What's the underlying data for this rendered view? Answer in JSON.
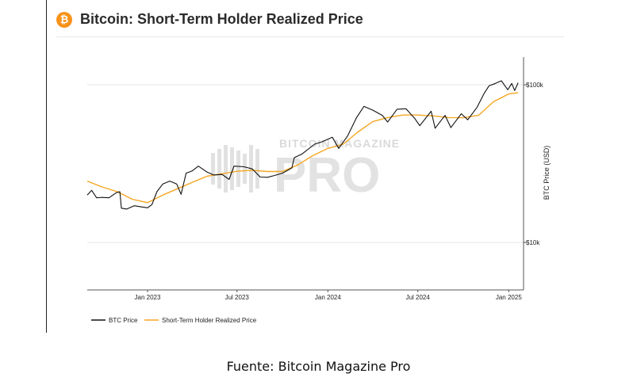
{
  "header": {
    "logo_glyph": "₿",
    "logo_color": "#f7931a",
    "title": "Bitcoin: Short-Term Holder Realized Price"
  },
  "watermark": {
    "line1": "BITCOIN MAGAZINE",
    "line2": "PRO"
  },
  "caption": "Fuente: Bitcoin Magazine Pro",
  "chart_data": {
    "type": "line",
    "x_axis": {
      "ticks": [
        "Jan 2023",
        "Jul 2023",
        "Jan 2024",
        "Jul 2024",
        "Jan 2025"
      ],
      "range": [
        "2022-09-01",
        "2025-01-31"
      ]
    },
    "y_axis": {
      "label": "BTC Price (USD)",
      "scale": "log",
      "ticks": [
        {
          "value": 100000,
          "label": "$100k"
        },
        {
          "value": 10000,
          "label": "$10k"
        }
      ],
      "range": [
        5000,
        150000
      ],
      "position": "right"
    },
    "grid": "horizontal",
    "legend": "bottom-left",
    "series": [
      {
        "name": "BTC Price",
        "color": "#111111",
        "points": [
          [
            "2022-09-01",
            20000
          ],
          [
            "2022-09-10",
            21400
          ],
          [
            "2022-09-20",
            19200
          ],
          [
            "2022-10-01",
            19300
          ],
          [
            "2022-10-15",
            19200
          ],
          [
            "2022-10-30",
            20700
          ],
          [
            "2022-11-06",
            21000
          ],
          [
            "2022-11-09",
            16500
          ],
          [
            "2022-11-20",
            16300
          ],
          [
            "2022-12-05",
            17100
          ],
          [
            "2022-12-20",
            16800
          ],
          [
            "2023-01-01",
            16600
          ],
          [
            "2023-01-10",
            17400
          ],
          [
            "2023-01-20",
            21000
          ],
          [
            "2023-02-01",
            23500
          ],
          [
            "2023-02-15",
            24500
          ],
          [
            "2023-03-01",
            23500
          ],
          [
            "2023-03-10",
            20200
          ],
          [
            "2023-03-20",
            27500
          ],
          [
            "2023-04-01",
            28400
          ],
          [
            "2023-04-14",
            30500
          ],
          [
            "2023-05-01",
            28000
          ],
          [
            "2023-05-15",
            26800
          ],
          [
            "2023-06-01",
            27000
          ],
          [
            "2023-06-15",
            25100
          ],
          [
            "2023-06-25",
            30500
          ],
          [
            "2023-07-15",
            30200
          ],
          [
            "2023-08-01",
            29300
          ],
          [
            "2023-08-17",
            26000
          ],
          [
            "2023-09-01",
            25900
          ],
          [
            "2023-09-15",
            26600
          ],
          [
            "2023-10-01",
            27500
          ],
          [
            "2023-10-20",
            29700
          ],
          [
            "2023-10-25",
            34500
          ],
          [
            "2023-11-10",
            36500
          ],
          [
            "2023-12-05",
            42000
          ],
          [
            "2023-12-20",
            43500
          ],
          [
            "2024-01-10",
            46500
          ],
          [
            "2024-01-23",
            39500
          ],
          [
            "2024-02-10",
            47500
          ],
          [
            "2024-02-28",
            62000
          ],
          [
            "2024-03-14",
            73000
          ],
          [
            "2024-04-01",
            69000
          ],
          [
            "2024-04-20",
            64000
          ],
          [
            "2024-05-01",
            58000
          ],
          [
            "2024-05-20",
            70000
          ],
          [
            "2024-06-07",
            70500
          ],
          [
            "2024-06-25",
            61000
          ],
          [
            "2024-07-05",
            55000
          ],
          [
            "2024-07-28",
            68000
          ],
          [
            "2024-08-05",
            53000
          ],
          [
            "2024-08-25",
            64000
          ],
          [
            "2024-09-06",
            53500
          ],
          [
            "2024-09-27",
            65500
          ],
          [
            "2024-10-10",
            60000
          ],
          [
            "2024-10-29",
            72000
          ],
          [
            "2024-11-12",
            88000
          ],
          [
            "2024-11-22",
            98500
          ],
          [
            "2024-12-05",
            102000
          ],
          [
            "2024-12-17",
            106000
          ],
          [
            "2024-12-30",
            93000
          ],
          [
            "2025-01-07",
            102000
          ],
          [
            "2025-01-13",
            92000
          ],
          [
            "2025-01-20",
            103000
          ]
        ]
      },
      {
        "name": "Short-Term Holder Realized Price",
        "color": "#f5a623",
        "points": [
          [
            "2022-09-01",
            24500
          ],
          [
            "2022-10-01",
            22500
          ],
          [
            "2022-11-01",
            21000
          ],
          [
            "2022-12-01",
            18800
          ],
          [
            "2023-01-01",
            17900
          ],
          [
            "2023-02-01",
            20000
          ],
          [
            "2023-03-01",
            21800
          ],
          [
            "2023-04-01",
            24000
          ],
          [
            "2023-05-01",
            26300
          ],
          [
            "2023-06-01",
            27300
          ],
          [
            "2023-07-01",
            28300
          ],
          [
            "2023-08-01",
            28700
          ],
          [
            "2023-09-01",
            28200
          ],
          [
            "2023-10-01",
            28200
          ],
          [
            "2023-11-01",
            31000
          ],
          [
            "2023-12-01",
            35500
          ],
          [
            "2024-01-01",
            39500
          ],
          [
            "2024-02-01",
            42000
          ],
          [
            "2024-03-01",
            50000
          ],
          [
            "2024-04-01",
            58500
          ],
          [
            "2024-05-01",
            62000
          ],
          [
            "2024-06-01",
            64300
          ],
          [
            "2024-07-01",
            64300
          ],
          [
            "2024-08-01",
            63500
          ],
          [
            "2024-09-01",
            62000
          ],
          [
            "2024-10-01",
            61800
          ],
          [
            "2024-11-01",
            64000
          ],
          [
            "2024-12-01",
            78000
          ],
          [
            "2025-01-01",
            87500
          ],
          [
            "2025-01-20",
            89000
          ]
        ]
      }
    ]
  }
}
